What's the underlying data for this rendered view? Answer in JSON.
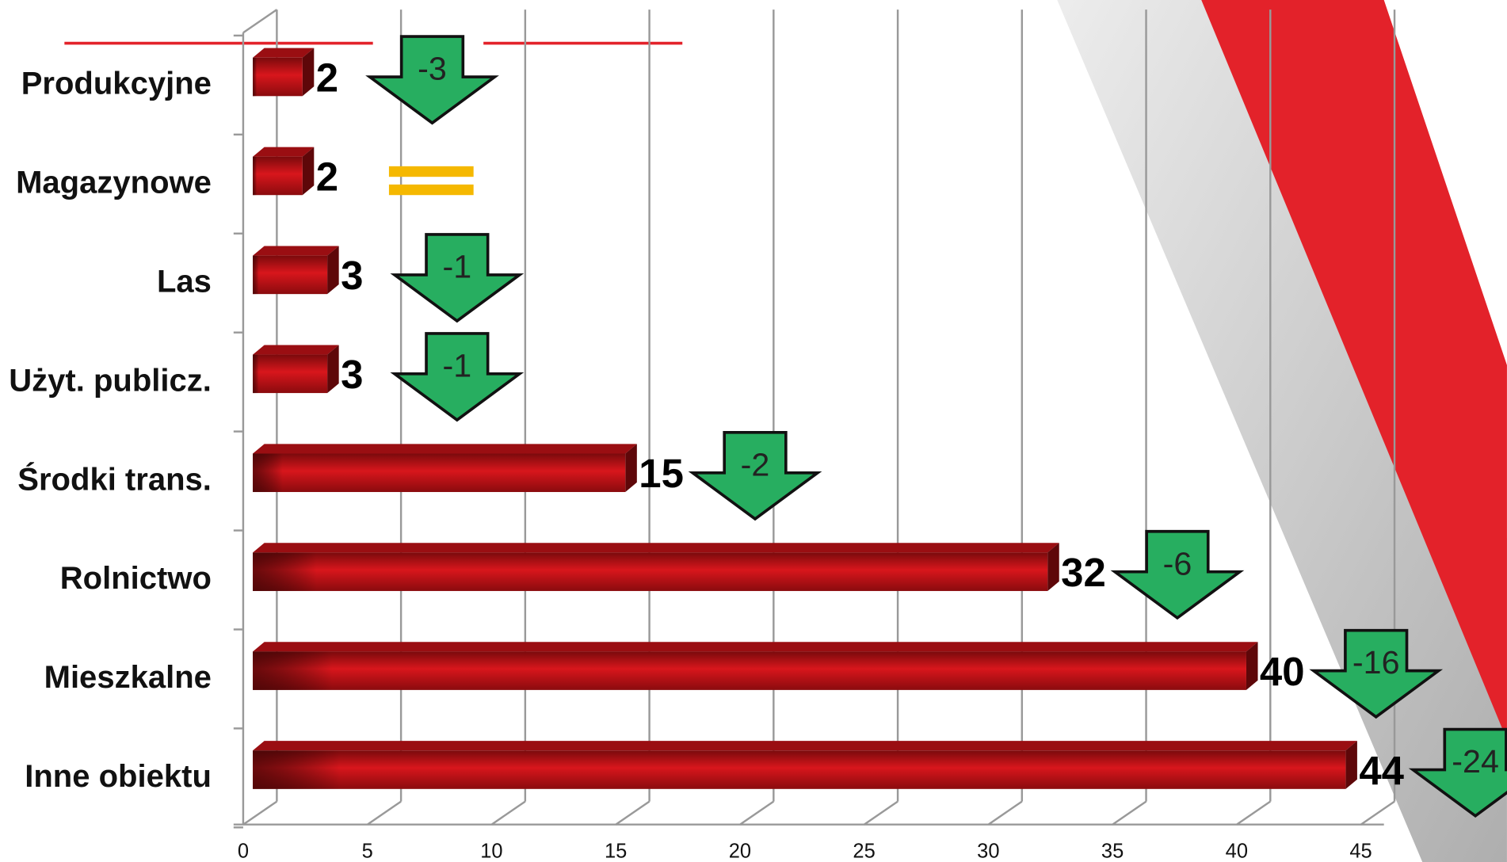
{
  "chart_data": {
    "type": "bar",
    "orientation": "horizontal",
    "categories": [
      "Produkcyjne",
      "Magazynowe",
      "Las",
      "Użyt. publicz.",
      "Środki trans.",
      "Rolnictwo",
      "Mieszkalne",
      "Inne obiektu"
    ],
    "values": [
      2,
      2,
      3,
      3,
      15,
      32,
      40,
      44
    ],
    "changes": [
      -3,
      0,
      -1,
      -1,
      -2,
      -6,
      -16,
      -24
    ],
    "color": "#c0141a",
    "change_color": "#27ae60",
    "same_color": "#f5b800",
    "xlim": [
      0,
      45
    ],
    "xticks": [
      0,
      5,
      10,
      15,
      20,
      25,
      30,
      35,
      40,
      45
    ],
    "grid": true
  }
}
